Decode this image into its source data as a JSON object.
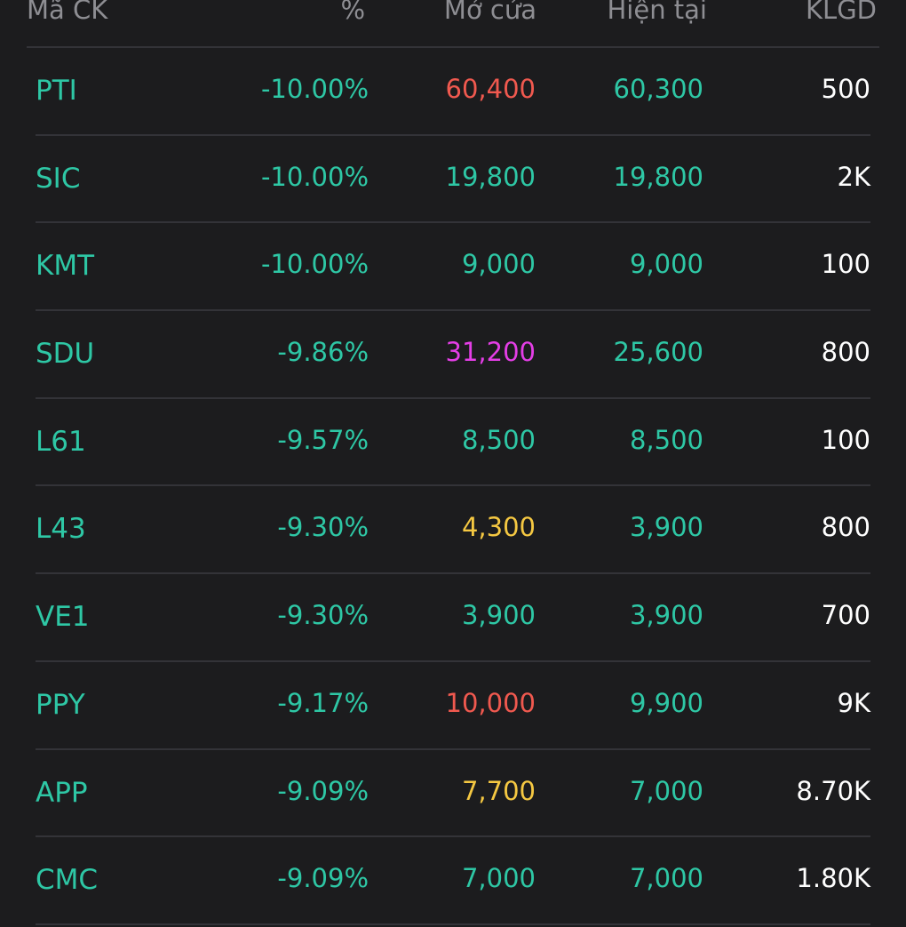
{
  "colors": {
    "background": "#1c1c1e",
    "header_text": "#8e8e93",
    "divider": "#333338",
    "teal": "#2ec7a5",
    "red": "#f0594f",
    "magenta": "#e43ee6",
    "yellow": "#f5c842",
    "white": "#ffffff"
  },
  "headers": {
    "code": "Mã CK",
    "pct": "%",
    "open": "Mở cửa",
    "current": "Hiện tại",
    "volume": "KLGD"
  },
  "rows": [
    {
      "code": "PTI",
      "pct": "-10.00%",
      "open": "60,400",
      "open_color": "#f0594f",
      "current": "60,300",
      "volume": "500"
    },
    {
      "code": "SIC",
      "pct": "-10.00%",
      "open": "19,800",
      "open_color": "#2ec7a5",
      "current": "19,800",
      "volume": "2K"
    },
    {
      "code": "KMT",
      "pct": "-10.00%",
      "open": "9,000",
      "open_color": "#2ec7a5",
      "current": "9,000",
      "volume": "100"
    },
    {
      "code": "SDU",
      "pct": "-9.86%",
      "open": "31,200",
      "open_color": "#e43ee6",
      "current": "25,600",
      "volume": "800"
    },
    {
      "code": "L61",
      "pct": "-9.57%",
      "open": "8,500",
      "open_color": "#2ec7a5",
      "current": "8,500",
      "volume": "100"
    },
    {
      "code": "L43",
      "pct": "-9.30%",
      "open": "4,300",
      "open_color": "#f5c842",
      "current": "3,900",
      "volume": "800"
    },
    {
      "code": "VE1",
      "pct": "-9.30%",
      "open": "3,900",
      "open_color": "#2ec7a5",
      "current": "3,900",
      "volume": "700"
    },
    {
      "code": "PPY",
      "pct": "-9.17%",
      "open": "10,000",
      "open_color": "#f0594f",
      "current": "9,900",
      "volume": "9K"
    },
    {
      "code": "APP",
      "pct": "-9.09%",
      "open": "7,700",
      "open_color": "#f5c842",
      "current": "7,000",
      "volume": "8.70K"
    },
    {
      "code": "CMC",
      "pct": "-9.09%",
      "open": "7,000",
      "open_color": "#2ec7a5",
      "current": "7,000",
      "volume": "1.80K"
    }
  ]
}
